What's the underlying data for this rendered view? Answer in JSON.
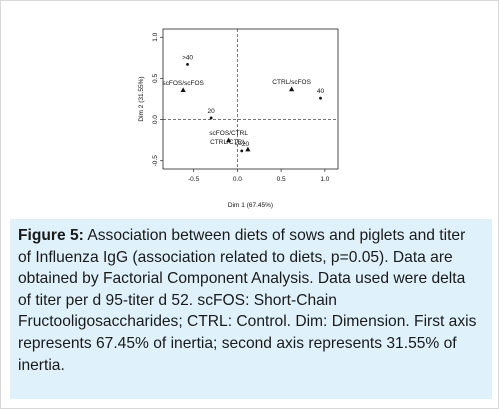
{
  "chart_data": {
    "type": "scatter",
    "xlabel": "Dim 1 (67.45%)",
    "ylabel": "Dim 2 (31.55%)",
    "xlim": [
      -0.85,
      1.15
    ],
    "ylim": [
      -0.6,
      1.1
    ],
    "xticks": [
      -0.5,
      0.0,
      0.5,
      1.0
    ],
    "xtick_labels": [
      "-0.5",
      "0.0",
      "0.5",
      "1.0"
    ],
    "yticks": [
      -0.5,
      0.0,
      0.5,
      1.0
    ],
    "ytick_labels": [
      "-0.5",
      "0.0",
      "0.5",
      "1.0"
    ],
    "reference_lines": {
      "x": 0,
      "y": 0,
      "style": "dashed"
    },
    "grid": false,
    "points": [
      {
        "label": ">40",
        "x": -0.57,
        "y": 0.67,
        "marker": "circle",
        "label_pos": "above"
      },
      {
        "label": "scFOS/scFOS",
        "x": -0.62,
        "y": 0.36,
        "marker": "triangle",
        "label_pos": "above"
      },
      {
        "label": "20",
        "x": -0.3,
        "y": 0.02,
        "marker": "circle",
        "label_pos": "above"
      },
      {
        "label": "scFOS/CTRL",
        "x": -0.1,
        "y": -0.25,
        "marker": "triangle",
        "label_pos": "above"
      },
      {
        "label": "CTRL/CTRL",
        "x": 0.12,
        "y": -0.36,
        "marker": "triangle",
        "label_pos": "above-left"
      },
      {
        "label": "<=20",
        "x": 0.05,
        "y": -0.38,
        "marker": "circle",
        "label_pos": "above"
      },
      {
        "label": "CTRL/scFOS",
        "x": 0.62,
        "y": 0.37,
        "marker": "triangle",
        "label_pos": "above"
      },
      {
        "label": "40",
        "x": 0.95,
        "y": 0.26,
        "marker": "circle",
        "label_pos": "above"
      }
    ]
  },
  "caption": {
    "label": "Figure 5:",
    "text": " Association between diets of sows and piglets and titer of Influenza IgG (association related to diets, p=0.05). Data are obtained by Factorial Component Analysis. Data used were delta of titer per d 95-titer d 52. scFOS: Short-Chain Fructooligosaccharides; CTRL: Control. Dim: Dimension. First axis represents 67.45% of inertia; second axis represents 31.55% of inertia."
  }
}
